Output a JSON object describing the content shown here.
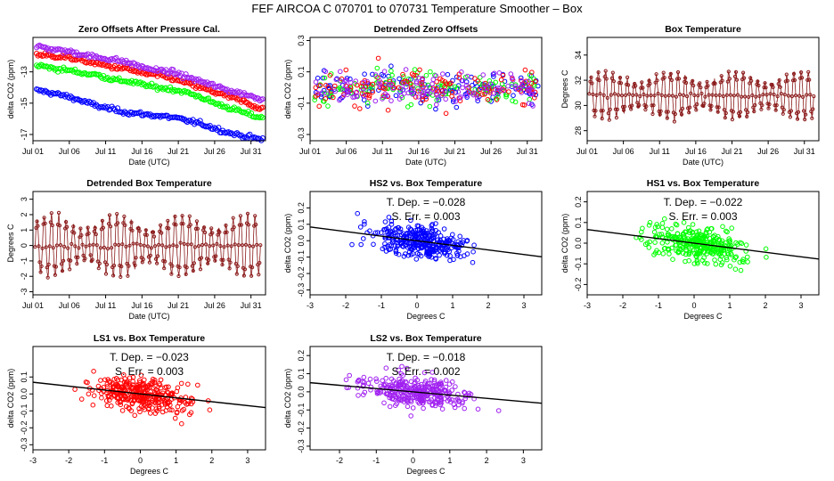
{
  "figure_title": "FEF   AIRCOA C   070701 to 070731   Temperature Smoother – Box",
  "colors": {
    "hs2": "#0000ff",
    "hs1": "#00ff00",
    "ls1": "#ff0000",
    "ls2": "#a020f0",
    "box": "#8b1a1a",
    "line": "#000000"
  },
  "chart_data": [
    {
      "id": "zero-offsets",
      "type": "scatter",
      "title": "Zero Offsets After Pressure Cal.",
      "xlabel": "Date (UTC)",
      "ylabel": "delta CO2 (ppm)",
      "xlim": [
        0,
        32
      ],
      "ylim": [
        -17.4,
        -10.8
      ],
      "xticks": [
        0,
        5,
        10,
        15,
        20,
        25,
        30
      ],
      "xticklabels": [
        "Jul 01",
        "Jul 06",
        "Jul 11",
        "Jul 16",
        "Jul 21",
        "Jul 26",
        "Jul 31"
      ],
      "yticks": [
        -17,
        -15,
        -13
      ],
      "yticklabels": [
        "-17",
        "-15",
        "-13"
      ],
      "series": [
        {
          "name": "HS2",
          "color": "#0000ff",
          "x": [
            1,
            3,
            5,
            7,
            9,
            11,
            13,
            15,
            17,
            19,
            21,
            23,
            25,
            27,
            29,
            31
          ],
          "y": [
            -14.2,
            -14.4,
            -14.6,
            -14.9,
            -15.2,
            -15.4,
            -15.6,
            -15.7,
            -15.8,
            -15.9,
            -16.1,
            -16.3,
            -16.6,
            -16.9,
            -17.1,
            -17.3
          ]
        },
        {
          "name": "HS1",
          "color": "#00ff00",
          "x": [
            1,
            3,
            5,
            7,
            9,
            11,
            13,
            15,
            17,
            19,
            21,
            23,
            25,
            27,
            29,
            31
          ],
          "y": [
            -12.6,
            -12.8,
            -12.9,
            -13.1,
            -13.2,
            -13.5,
            -13.6,
            -13.8,
            -14.0,
            -14.1,
            -14.3,
            -14.6,
            -15.0,
            -15.3,
            -15.6,
            -15.9
          ]
        },
        {
          "name": "LS1",
          "color": "#ff0000",
          "x": [
            1,
            3,
            5,
            7,
            9,
            11,
            13,
            15,
            17,
            19,
            21,
            23,
            25,
            27,
            29,
            31
          ],
          "y": [
            -11.9,
            -12.0,
            -12.1,
            -12.3,
            -12.5,
            -12.7,
            -12.8,
            -13.1,
            -13.2,
            -13.4,
            -13.7,
            -14.0,
            -14.3,
            -14.6,
            -14.9,
            -15.3
          ]
        },
        {
          "name": "LS2",
          "color": "#a020f0",
          "x": [
            1,
            3,
            5,
            7,
            9,
            11,
            13,
            15,
            17,
            19,
            21,
            23,
            25,
            27,
            29,
            31
          ],
          "y": [
            -11.4,
            -11.6,
            -11.7,
            -11.9,
            -12.1,
            -12.2,
            -12.4,
            -12.7,
            -12.9,
            -13.0,
            -13.3,
            -13.6,
            -13.9,
            -14.2,
            -14.4,
            -14.7
          ]
        }
      ]
    },
    {
      "id": "detrended-zero",
      "type": "scatter",
      "title": "Detrended Zero Offsets",
      "xlabel": "Date (UTC)",
      "ylabel": "delta CO2 (ppm)",
      "xlim": [
        0,
        32
      ],
      "ylim": [
        -0.34,
        0.32
      ],
      "xticks": [
        0,
        5,
        10,
        15,
        20,
        25,
        30
      ],
      "xticklabels": [
        "Jul 01",
        "Jul 06",
        "Jul 11",
        "Jul 16",
        "Jul 21",
        "Jul 26",
        "Jul 31"
      ],
      "yticks": [
        -0.3,
        -0.1,
        0.1,
        0.3
      ],
      "yticklabels": [
        "-0.3",
        "-0.1",
        "0.1",
        "0.3"
      ],
      "spread": 0.09,
      "n_per_series": 130,
      "series": [
        {
          "name": "HS2",
          "color": "#0000ff"
        },
        {
          "name": "HS1",
          "color": "#00ff00"
        },
        {
          "name": "LS1",
          "color": "#ff0000"
        },
        {
          "name": "LS2",
          "color": "#a020f0"
        }
      ]
    },
    {
      "id": "box-temp",
      "type": "line",
      "title": "Box Temperature",
      "xlabel": "Date (UTC)",
      "ylabel": "Degrees C",
      "xlim": [
        0,
        32
      ],
      "ylim": [
        27.2,
        35.4
      ],
      "xticks": [
        0,
        5,
        10,
        15,
        20,
        25,
        30
      ],
      "xticklabels": [
        "Jul 01",
        "Jul 06",
        "Jul 11",
        "Jul 16",
        "Jul 21",
        "Jul 26",
        "Jul 31"
      ],
      "yticks": [
        28,
        30,
        32,
        34
      ],
      "yticklabels": [
        "28",
        "30",
        "32",
        "34"
      ],
      "mean": 30.8,
      "amplitude": 1.9,
      "color": "#8b1a1a"
    },
    {
      "id": "detrended-box",
      "type": "line",
      "title": "Detrended Box Temperature",
      "xlabel": "Date (UTC)",
      "ylabel": "Degrees C",
      "xlim": [
        0,
        32
      ],
      "ylim": [
        -3.2,
        3.5
      ],
      "xticks": [
        0,
        5,
        10,
        15,
        20,
        25,
        30
      ],
      "xticklabels": [
        "Jul 01",
        "Jul 06",
        "Jul 11",
        "Jul 16",
        "Jul 21",
        "Jul 26",
        "Jul 31"
      ],
      "yticks": [
        -3,
        -2,
        -1,
        0,
        1,
        2,
        3
      ],
      "yticklabels": [
        "-3",
        "-2",
        "-1",
        "0",
        "1",
        "2",
        "3"
      ],
      "mean": 0,
      "amplitude": 2.0,
      "color": "#8b1a1a"
    },
    {
      "id": "hs2-vs-box",
      "type": "scatter",
      "title": "HS2 vs. Box Temperature",
      "xlabel": "Degrees C",
      "ylabel": "delta CO2 (ppm)",
      "xlim": [
        -3,
        3.5
      ],
      "ylim": [
        -0.33,
        0.3
      ],
      "xticks": [
        -3,
        -2,
        -1,
        0,
        1,
        2,
        3
      ],
      "xticklabels": [
        "-3",
        "-2",
        "-1",
        "0",
        "1",
        "2",
        "3"
      ],
      "yticks": [
        -0.3,
        -0.2,
        -0.1,
        0,
        0.1,
        0.2
      ],
      "yticklabels": [
        "-0.3",
        "-0.2",
        "-0.1",
        "0.0",
        "0.1",
        "0.2"
      ],
      "slope": -0.028,
      "intercept": 0,
      "spread": 0.08,
      "annotation_1": "T. Dep. = −0.028",
      "annotation_2": "S. Err. = 0.003",
      "color": "#0000ff"
    },
    {
      "id": "hs1-vs-box",
      "type": "scatter",
      "title": "HS1 vs. Box Temperature",
      "xlabel": "Degrees C",
      "ylabel": "delta CO2 (ppm)",
      "xlim": [
        -3,
        3.5
      ],
      "ylim": [
        -0.25,
        0.25
      ],
      "xticks": [
        -3,
        -2,
        -1,
        0,
        1,
        2,
        3
      ],
      "xticklabels": [
        "-3",
        "-2",
        "-1",
        "0",
        "1",
        "2",
        "3"
      ],
      "yticks": [
        -0.2,
        -0.1,
        0,
        0.1,
        0.2
      ],
      "yticklabels": [
        "-0.2",
        "-0.1",
        "0.0",
        "0.1",
        "0.2"
      ],
      "slope": -0.022,
      "intercept": 0,
      "spread": 0.07,
      "annotation_1": "T. Dep. = −0.022",
      "annotation_2": "S. Err. = 0.003",
      "color": "#00ff00"
    },
    {
      "id": "ls1-vs-box",
      "type": "scatter",
      "title": "LS1 vs. Box Temperature",
      "xlabel": "Degrees C",
      "ylabel": "delta CO2 (ppm)",
      "xlim": [
        -3,
        3.5
      ],
      "ylim": [
        -0.33,
        0.28
      ],
      "xticks": [
        -3,
        -2,
        -1,
        0,
        1,
        2,
        3
      ],
      "xticklabels": [
        "-3",
        "-2",
        "-1",
        "0",
        "1",
        "2",
        "3"
      ],
      "yticks": [
        -0.3,
        -0.2,
        -0.1,
        0,
        0.1
      ],
      "yticklabels": [
        "-0.3",
        "-0.2",
        "-0.1",
        "0.0",
        "0.1"
      ],
      "slope": -0.023,
      "intercept": 0,
      "spread": 0.08,
      "annotation_1": "T. Dep. = −0.023",
      "annotation_2": "S. Err. = 0.003",
      "color": "#ff0000"
    },
    {
      "id": "ls2-vs-box",
      "type": "scatter",
      "title": "LS2 vs. Box Temperature",
      "xlabel": "Degrees C",
      "ylabel": "delta CO2 (ppm)",
      "xlim": [
        -2.8,
        3.5
      ],
      "ylim": [
        -0.32,
        0.25
      ],
      "xticks": [
        -2,
        -1,
        0,
        1,
        2,
        3
      ],
      "xticklabels": [
        "-2",
        "-1",
        "0",
        "1",
        "2",
        "3"
      ],
      "yticks": [
        -0.3,
        -0.2,
        -0.1,
        0,
        0.1,
        0.2
      ],
      "yticklabels": [
        "-0.3",
        "-0.2",
        "-0.1",
        "0.0",
        "0.1",
        "0.2"
      ],
      "slope": -0.018,
      "intercept": 0,
      "spread": 0.075,
      "annotation_1": "T. Dep. = −0.018",
      "annotation_2": "S. Err. = 0.002",
      "color": "#a020f0"
    }
  ]
}
